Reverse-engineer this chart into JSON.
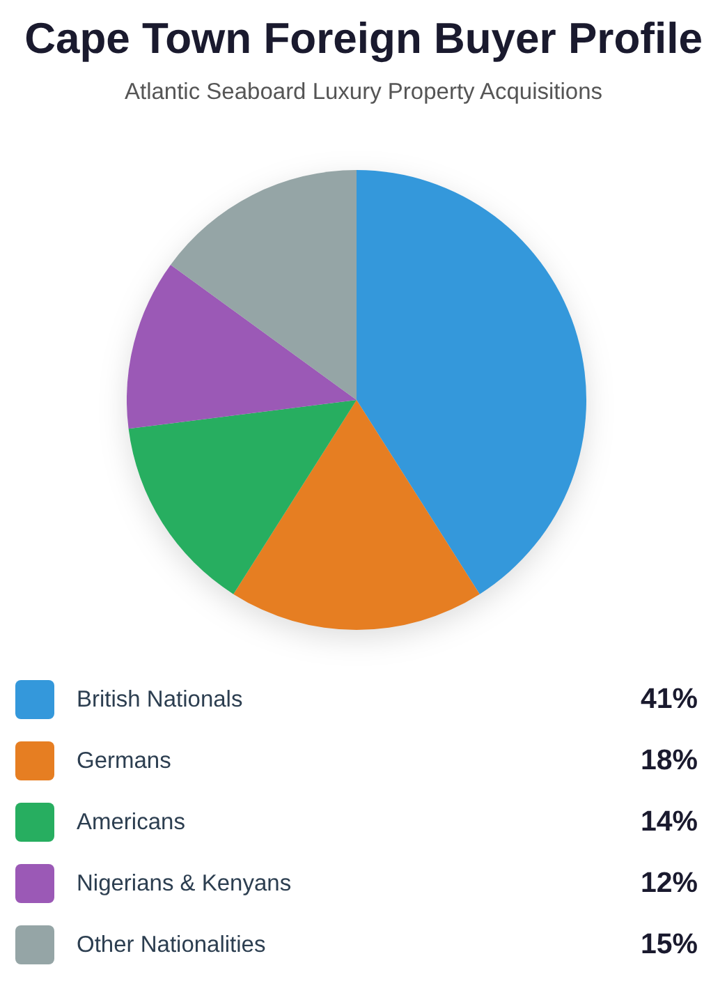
{
  "chart_data": {
    "type": "pie",
    "title": "Cape Town Foreign Buyer Profile",
    "subtitle": "Atlantic Seaboard Luxury Property Acquisitions",
    "categories": [
      "British Nationals",
      "Germans",
      "Americans",
      "Nigerians & Kenyans",
      "Other Nationalities"
    ],
    "values": [
      41,
      18,
      14,
      12,
      15
    ],
    "value_labels": [
      "41%",
      "18%",
      "14%",
      "12%",
      "15%"
    ],
    "colors": [
      "#3498db",
      "#e67e22",
      "#27ae60",
      "#9b59b6",
      "#95a5a6"
    ],
    "legend": "bottom"
  }
}
